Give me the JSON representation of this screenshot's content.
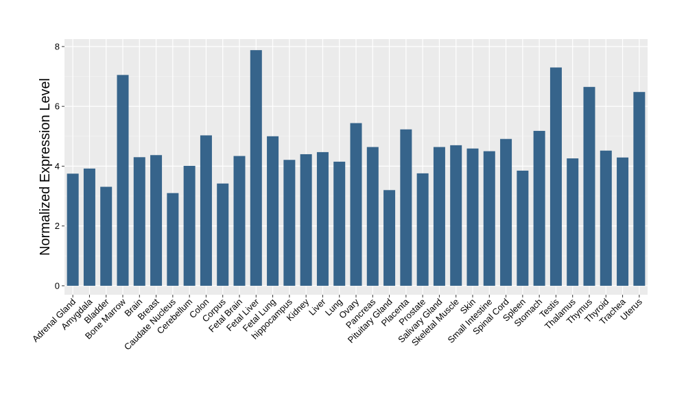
{
  "colors": {
    "bar": "#36648b",
    "panel_background": "#ebebeb",
    "grid_major": "#ffffff",
    "grid_minor": "#f5f5f5",
    "axis_text": "#000000",
    "tick": "#333333"
  },
  "chart_data": {
    "type": "bar",
    "title": "",
    "xlabel": "",
    "ylabel": "Normalized Expression Level",
    "ylim": [
      -0.3,
      8.25
    ],
    "yticks": [
      0,
      2,
      4,
      6,
      8
    ],
    "grid": true,
    "legend": "none",
    "categories": [
      "Adrenal Gland",
      "Amygdala",
      "Bladder",
      "Bone Marrow",
      "Brain",
      "Breast",
      "Caudate Nucleus",
      "Cerebellum",
      "Colon",
      "Corpus",
      "Fetal Brain",
      "Fetal Liver",
      "Fetal Lung",
      "hippocampus",
      "Kidney",
      "Liver",
      "Lung",
      "Ovary",
      "Pancreas",
      "Pituitary Gland",
      "Placenta",
      "Prostate",
      "Salivary Gland",
      "Skeletal Muscle",
      "Skin",
      "Small Intestine",
      "Spinal Cord",
      "Spleen",
      "Stomach",
      "Testis",
      "Thalamus",
      "Thymus",
      "Thyroid",
      "Trachea",
      "Uterus"
    ],
    "values": [
      3.75,
      3.92,
      3.31,
      7.05,
      4.3,
      4.37,
      3.1,
      4.01,
      5.03,
      3.42,
      4.34,
      7.88,
      5.0,
      4.21,
      4.4,
      4.47,
      4.15,
      5.44,
      4.64,
      3.2,
      5.23,
      3.76,
      4.64,
      4.7,
      4.59,
      4.5,
      4.91,
      3.85,
      5.18,
      7.3,
      4.26,
      6.65,
      4.52,
      4.29,
      6.48
    ]
  }
}
